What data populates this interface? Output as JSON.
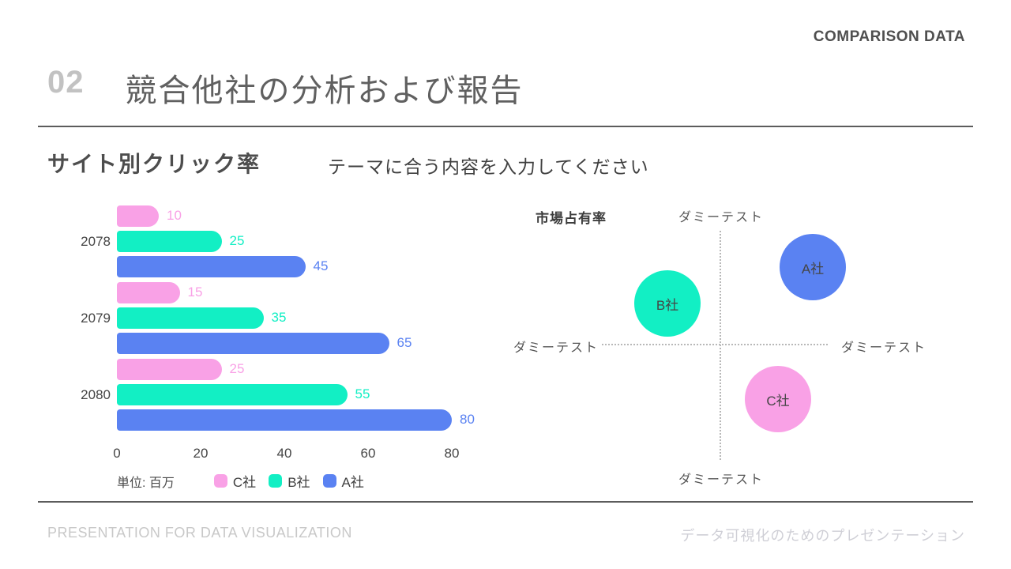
{
  "slide": {
    "eyebrow": "COMPARISON DATA",
    "section_number": "02",
    "title": "競合他社の分析および報告",
    "footer_left": "PRESENTATION FOR DATA VISUALIZATION",
    "footer_right": "データ可視化のためのプレゼンテーション"
  },
  "content": {
    "heading": "サイト別クリック率",
    "subheading": "テーマに合う内容を入力してください"
  },
  "colors": {
    "company_a": "#5a82f2",
    "company_b": "#12efc4",
    "company_c": "#f9a1e6",
    "divider": "#5c5c5c",
    "dotted_line": "#b8b8b8"
  },
  "chart_data": [
    {
      "type": "bar",
      "orientation": "horizontal",
      "title": "サイト別クリック率",
      "unit_label": "単位: 百万",
      "categories": [
        "2078",
        "2079",
        "2080"
      ],
      "series": [
        {
          "name": "C社",
          "color": "#f9a1e6",
          "values": [
            10,
            15,
            25
          ]
        },
        {
          "name": "B社",
          "color": "#12efc4",
          "values": [
            25,
            35,
            55
          ]
        },
        {
          "name": "A社",
          "color": "#5a82f2",
          "values": [
            45,
            65,
            80
          ]
        }
      ],
      "x_ticks": [
        0,
        20,
        40,
        60,
        80
      ],
      "xlim": [
        0,
        80
      ],
      "grid": false,
      "legend_position": "bottom",
      "legend": [
        "C社",
        "B社",
        "A社"
      ]
    },
    {
      "type": "scatter",
      "title": "市場占有率",
      "axis_labels": {
        "top": "ダミーテスト",
        "bottom": "ダミーテスト",
        "left": "ダミーテスト",
        "right": "ダミーテスト"
      },
      "points": [
        {
          "name": "A社",
          "color": "#5a82f2",
          "quadrant": "top-right"
        },
        {
          "name": "B社",
          "color": "#12efc4",
          "quadrant": "top-left"
        },
        {
          "name": "C社",
          "color": "#f9a1e6",
          "quadrant": "bottom-right"
        }
      ]
    }
  ]
}
